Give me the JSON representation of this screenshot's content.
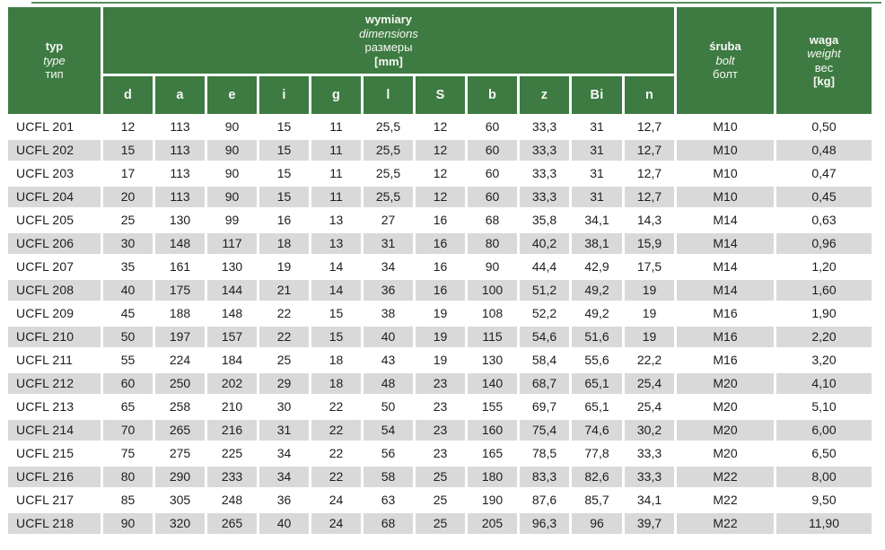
{
  "colors": {
    "header_green": "#3d7b42",
    "row_alt_gray": "#d9d9d9",
    "body_text": "#1d1d1b",
    "header_text": "#f7f7f4"
  },
  "table": {
    "type_header": {
      "pl": "typ",
      "en": "type",
      "ru": "тип"
    },
    "dimensions_header": {
      "pl": "wymiary",
      "en": "dimensions",
      "ru": "размеры",
      "unit": "[mm]"
    },
    "dimension_columns": [
      "d",
      "a",
      "e",
      "i",
      "g",
      "l",
      "S",
      "b",
      "z",
      "Bi",
      "n"
    ],
    "bolt_header": {
      "pl": "śruba",
      "en": "bolt",
      "ru": "болт"
    },
    "weight_header": {
      "pl": "waga",
      "en": "weight",
      "ru": "вес",
      "unit": "[kg]"
    },
    "rows": [
      {
        "type": "UCFL 201",
        "dims": [
          "12",
          "113",
          "90",
          "15",
          "11",
          "25,5",
          "12",
          "60",
          "33,3",
          "31",
          "12,7"
        ],
        "bolt": "M10",
        "weight": "0,50"
      },
      {
        "type": "UCFL 202",
        "dims": [
          "15",
          "113",
          "90",
          "15",
          "11",
          "25,5",
          "12",
          "60",
          "33,3",
          "31",
          "12,7"
        ],
        "bolt": "M10",
        "weight": "0,48"
      },
      {
        "type": "UCFL 203",
        "dims": [
          "17",
          "113",
          "90",
          "15",
          "11",
          "25,5",
          "12",
          "60",
          "33,3",
          "31",
          "12,7"
        ],
        "bolt": "M10",
        "weight": "0,47"
      },
      {
        "type": "UCFL 204",
        "dims": [
          "20",
          "113",
          "90",
          "15",
          "11",
          "25,5",
          "12",
          "60",
          "33,3",
          "31",
          "12,7"
        ],
        "bolt": "M10",
        "weight": "0,45"
      },
      {
        "type": "UCFL 205",
        "dims": [
          "25",
          "130",
          "99",
          "16",
          "13",
          "27",
          "16",
          "68",
          "35,8",
          "34,1",
          "14,3"
        ],
        "bolt": "M14",
        "weight": "0,63"
      },
      {
        "type": "UCFL 206",
        "dims": [
          "30",
          "148",
          "117",
          "18",
          "13",
          "31",
          "16",
          "80",
          "40,2",
          "38,1",
          "15,9"
        ],
        "bolt": "M14",
        "weight": "0,96"
      },
      {
        "type": "UCFL 207",
        "dims": [
          "35",
          "161",
          "130",
          "19",
          "14",
          "34",
          "16",
          "90",
          "44,4",
          "42,9",
          "17,5"
        ],
        "bolt": "M14",
        "weight": "1,20"
      },
      {
        "type": "UCFL 208",
        "dims": [
          "40",
          "175",
          "144",
          "21",
          "14",
          "36",
          "16",
          "100",
          "51,2",
          "49,2",
          "19"
        ],
        "bolt": "M14",
        "weight": "1,60"
      },
      {
        "type": "UCFL 209",
        "dims": [
          "45",
          "188",
          "148",
          "22",
          "15",
          "38",
          "19",
          "108",
          "52,2",
          "49,2",
          "19"
        ],
        "bolt": "M16",
        "weight": "1,90"
      },
      {
        "type": "UCFL 210",
        "dims": [
          "50",
          "197",
          "157",
          "22",
          "15",
          "40",
          "19",
          "115",
          "54,6",
          "51,6",
          "19"
        ],
        "bolt": "M16",
        "weight": "2,20"
      },
      {
        "type": "UCFL 211",
        "dims": [
          "55",
          "224",
          "184",
          "25",
          "18",
          "43",
          "19",
          "130",
          "58,4",
          "55,6",
          "22,2"
        ],
        "bolt": "M16",
        "weight": "3,20"
      },
      {
        "type": "UCFL 212",
        "dims": [
          "60",
          "250",
          "202",
          "29",
          "18",
          "48",
          "23",
          "140",
          "68,7",
          "65,1",
          "25,4"
        ],
        "bolt": "M20",
        "weight": "4,10"
      },
      {
        "type": "UCFL 213",
        "dims": [
          "65",
          "258",
          "210",
          "30",
          "22",
          "50",
          "23",
          "155",
          "69,7",
          "65,1",
          "25,4"
        ],
        "bolt": "M20",
        "weight": "5,10"
      },
      {
        "type": "UCFL 214",
        "dims": [
          "70",
          "265",
          "216",
          "31",
          "22",
          "54",
          "23",
          "160",
          "75,4",
          "74,6",
          "30,2"
        ],
        "bolt": "M20",
        "weight": "6,00"
      },
      {
        "type": "UCFL 215",
        "dims": [
          "75",
          "275",
          "225",
          "34",
          "22",
          "56",
          "23",
          "165",
          "78,5",
          "77,8",
          "33,3"
        ],
        "bolt": "M20",
        "weight": "6,50"
      },
      {
        "type": "UCFL 216",
        "dims": [
          "80",
          "290",
          "233",
          "34",
          "22",
          "58",
          "25",
          "180",
          "83,3",
          "82,6",
          "33,3"
        ],
        "bolt": "M22",
        "weight": "8,00"
      },
      {
        "type": "UCFL 217",
        "dims": [
          "85",
          "305",
          "248",
          "36",
          "24",
          "63",
          "25",
          "190",
          "87,6",
          "85,7",
          "34,1"
        ],
        "bolt": "M22",
        "weight": "9,50"
      },
      {
        "type": "UCFL 218",
        "dims": [
          "90",
          "320",
          "265",
          "40",
          "24",
          "68",
          "25",
          "205",
          "96,3",
          "96",
          "39,7"
        ],
        "bolt": "M22",
        "weight": "11,90"
      }
    ]
  }
}
